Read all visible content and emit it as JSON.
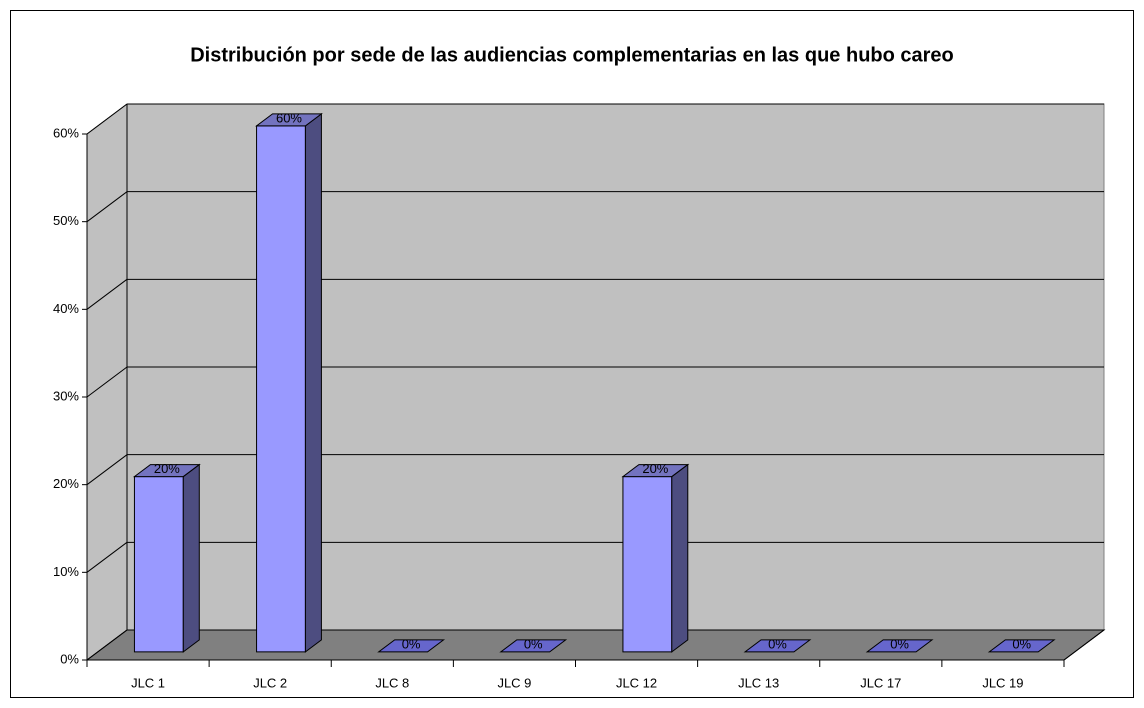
{
  "chart_data": {
    "type": "bar3d",
    "title": "Distribución por sede de las audiencias complementarias en las que hubo careo",
    "categories": [
      "JLC 1",
      "JLC 2",
      "JLC 8",
      "JLC 9",
      "JLC 12",
      "JLC 13",
      "JLC 17",
      "JLC 19"
    ],
    "values": [
      20,
      60,
      0,
      0,
      20,
      0,
      0,
      0
    ],
    "value_labels": [
      "20%",
      "60%",
      "0%",
      "0%",
      "20%",
      "0%",
      "0%",
      "0%"
    ],
    "color": "#9999ff",
    "ylim": [
      0,
      60
    ],
    "yticks": [
      {
        "value": 0,
        "label": "0%"
      },
      {
        "value": 10,
        "label": "10%"
      },
      {
        "value": 20,
        "label": "20%"
      },
      {
        "value": 30,
        "label": "30%"
      },
      {
        "value": 40,
        "label": "40%"
      },
      {
        "value": 50,
        "label": "50%"
      },
      {
        "value": 60,
        "label": "60%"
      }
    ],
    "grid": true
  }
}
